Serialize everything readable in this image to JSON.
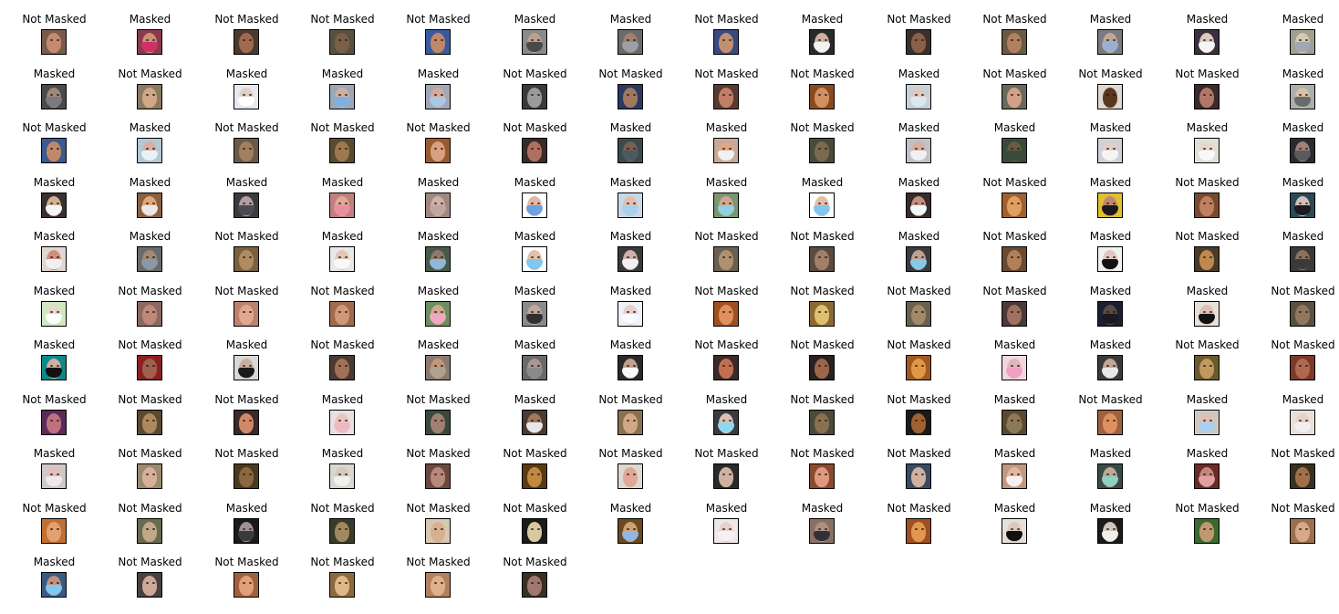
{
  "layout": {
    "columns": 14
  },
  "cells": [
    {
      "label": "Not Masked",
      "masked": false,
      "bg": "#7a5a48",
      "skin": "#c48a70",
      "mask": ""
    },
    {
      "label": "Masked",
      "masked": true,
      "bg": "#8a3a4a",
      "skin": "#c89078",
      "mask": "#d0306a"
    },
    {
      "label": "Not Masked",
      "masked": false,
      "bg": "#4a3a30",
      "skin": "#a06a50",
      "mask": ""
    },
    {
      "label": "Not Masked",
      "masked": false,
      "bg": "#5a5040",
      "skin": "#7a6048",
      "mask": ""
    },
    {
      "label": "Not Masked",
      "masked": false,
      "bg": "#3a5aa0",
      "skin": "#c08868",
      "mask": ""
    },
    {
      "label": "Masked",
      "masked": true,
      "bg": "#8a8a8a",
      "skin": "#bba090",
      "mask": "#4a4a4a"
    },
    {
      "label": "Masked",
      "masked": true,
      "bg": "#6a6a6a",
      "skin": "#a08070",
      "mask": "#9aa0a8"
    },
    {
      "label": "Not Masked",
      "masked": false,
      "bg": "#3a4a80",
      "skin": "#c09070",
      "mask": ""
    },
    {
      "label": "Masked",
      "masked": true,
      "bg": "#2a2a2a",
      "skin": "#d0b0a0",
      "mask": "#f2f2f2"
    },
    {
      "label": "Not Masked",
      "masked": false,
      "bg": "#3a3028",
      "skin": "#8a6048",
      "mask": ""
    },
    {
      "label": "Not Masked",
      "masked": false,
      "bg": "#6a5a40",
      "skin": "#b08060",
      "mask": ""
    },
    {
      "label": "Masked",
      "masked": true,
      "bg": "#7a7a80",
      "skin": "#c0a898",
      "mask": "#9ab0d0"
    },
    {
      "label": "Masked",
      "masked": true,
      "bg": "#3a3040",
      "skin": "#e0c8c0",
      "mask": "#f5f5f5"
    },
    {
      "label": "Masked",
      "masked": true,
      "bg": "#a0a090",
      "skin": "#d8c8b0",
      "mask": "#a0a8b0"
    },
    {
      "label": "Masked",
      "masked": true,
      "bg": "#4a4a4a",
      "skin": "#a08878",
      "mask": "#7a7a80"
    },
    {
      "label": "Not Masked",
      "masked": false,
      "bg": "#8a7a60",
      "skin": "#d0a888",
      "mask": ""
    },
    {
      "label": "Masked",
      "masked": true,
      "bg": "#e8e8f0",
      "skin": "#e0d0c8",
      "mask": "#ffffff"
    },
    {
      "label": "Masked",
      "masked": true,
      "bg": "#9aa8b8",
      "skin": "#d0b0a0",
      "mask": "#80b0e0"
    },
    {
      "label": "Masked",
      "masked": true,
      "bg": "#a0a8b8",
      "skin": "#d8a898",
      "mask": "#a8c8e8"
    },
    {
      "label": "Not Masked",
      "masked": false,
      "bg": "#3a3a3a",
      "skin": "#9a9a9a",
      "mask": ""
    },
    {
      "label": "Not Masked",
      "masked": false,
      "bg": "#2a3a60",
      "skin": "#a07860",
      "mask": ""
    },
    {
      "label": "Not Masked",
      "masked": false,
      "bg": "#5a3a30",
      "skin": "#c08068",
      "mask": ""
    },
    {
      "label": "Not Masked",
      "masked": false,
      "bg": "#8a4a20",
      "skin": "#d09060",
      "mask": ""
    },
    {
      "label": "Masked",
      "masked": true,
      "bg": "#c8d0d8",
      "skin": "#e0c8c0",
      "mask": "#d8e8f0"
    },
    {
      "label": "Not Masked",
      "masked": false,
      "bg": "#6a6a5a",
      "skin": "#d0a088",
      "mask": ""
    },
    {
      "label": "Not Masked",
      "masked": false,
      "bg": "#e0d8d0",
      "skin": "#5a3820",
      "mask": ""
    },
    {
      "label": "Not Masked",
      "masked": false,
      "bg": "#3a2a28",
      "skin": "#b07868",
      "mask": ""
    },
    {
      "label": "Masked",
      "masked": true,
      "bg": "#a8b0a8",
      "skin": "#d8c0a8",
      "mask": "#6a6a6a"
    },
    {
      "label": "Not Masked",
      "masked": false,
      "bg": "#3a5a90",
      "skin": "#c08868",
      "mask": ""
    },
    {
      "label": "Masked",
      "masked": true,
      "bg": "#b0c8d8",
      "skin": "#d8b0a0",
      "mask": "#e8f0f8"
    },
    {
      "label": "Not Masked",
      "masked": false,
      "bg": "#6a5a48",
      "skin": "#a08060",
      "mask": ""
    },
    {
      "label": "Not Masked",
      "masked": false,
      "bg": "#5a4a30",
      "skin": "#a07850",
      "mask": ""
    },
    {
      "label": "Not Masked",
      "masked": false,
      "bg": "#9a5a30",
      "skin": "#d8a080",
      "mask": ""
    },
    {
      "label": "Not Masked",
      "masked": false,
      "bg": "#3a2a28",
      "skin": "#b07060",
      "mask": ""
    },
    {
      "label": "Masked",
      "masked": true,
      "bg": "#3a4a50",
      "skin": "#7a6050",
      "mask": "#4a5a60"
    },
    {
      "label": "Masked",
      "masked": true,
      "bg": "#c8a898",
      "skin": "#e0a888",
      "mask": "#f0f0f0"
    },
    {
      "label": "Not Masked",
      "masked": false,
      "bg": "#4a4a3a",
      "skin": "#7a6a50",
      "mask": ""
    },
    {
      "label": "Masked",
      "masked": true,
      "bg": "#c0c0c8",
      "skin": "#d8b0a0",
      "mask": "#f0f0f5"
    },
    {
      "label": "Masked",
      "masked": true,
      "bg": "#3a4a38",
      "skin": "#6a5a40",
      "mask": "#3a4a3a"
    },
    {
      "label": "Masked",
      "masked": true,
      "bg": "#d0d0d8",
      "skin": "#e0d0c8",
      "mask": "#f5f5f8"
    },
    {
      "label": "Masked",
      "masked": true,
      "bg": "#e0e0d8",
      "skin": "#e8d8c8",
      "mask": "#f8f8f8"
    },
    {
      "label": "Masked",
      "masked": true,
      "bg": "#2a2a30",
      "skin": "#a08078",
      "mask": "#5a5a60"
    },
    {
      "label": "Masked",
      "masked": true,
      "bg": "#3a3030",
      "skin": "#d0b090",
      "mask": "#f5f5f5"
    },
    {
      "label": "Masked",
      "masked": true,
      "bg": "#8a6040",
      "skin": "#e0a878",
      "mask": "#e8e8e8"
    },
    {
      "label": "Masked",
      "masked": true,
      "bg": "#3a3a40",
      "skin": "#b0a0a0",
      "mask": "#4a4a50"
    },
    {
      "label": "Masked",
      "masked": true,
      "bg": "#c08080",
      "skin": "#e0a898",
      "mask": "#e890a0"
    },
    {
      "label": "Masked",
      "masked": true,
      "bg": "#a08880",
      "skin": "#d0b0a8",
      "mask": "#c0a8a0"
    },
    {
      "label": "Masked",
      "masked": true,
      "bg": "#ffffff",
      "skin": "#e0b8a8",
      "mask": "#70a0e0"
    },
    {
      "label": "Masked",
      "masked": true,
      "bg": "#c8d8e8",
      "skin": "#e0c0b0",
      "mask": "#a8d0f0"
    },
    {
      "label": "Masked",
      "masked": true,
      "bg": "#7a9870",
      "skin": "#d0a890",
      "mask": "#90d0e0"
    },
    {
      "label": "Masked",
      "masked": true,
      "bg": "#ffffff",
      "skin": "#e0c0a8",
      "mask": "#80c8f0"
    },
    {
      "label": "Masked",
      "masked": true,
      "bg": "#3a2a28",
      "skin": "#c09080",
      "mask": "#f0f8f8"
    },
    {
      "label": "Not Masked",
      "masked": false,
      "bg": "#a06030",
      "skin": "#e0a060",
      "mask": ""
    },
    {
      "label": "Masked",
      "masked": true,
      "bg": "#e0c030",
      "skin": "#c08870",
      "mask": "#1a1a1a"
    },
    {
      "label": "Not Masked",
      "masked": false,
      "bg": "#7a4a30",
      "skin": "#c08060",
      "mask": ""
    },
    {
      "label": "Masked",
      "masked": true,
      "bg": "#2a4a58",
      "skin": "#d0c0b8",
      "mask": "#1a1a20"
    },
    {
      "label": "Masked",
      "masked": true,
      "bg": "#e0d8d0",
      "skin": "#d09080",
      "mask": "#f0f0f0"
    },
    {
      "label": "Masked",
      "masked": true,
      "bg": "#6a6a6a",
      "skin": "#a08878",
      "mask": "#8898a8"
    },
    {
      "label": "Not Masked",
      "masked": false,
      "bg": "#7a6040",
      "skin": "#b08a60",
      "mask": ""
    },
    {
      "label": "Masked",
      "masked": true,
      "bg": "#e8e8e8",
      "skin": "#e0c8b8",
      "mask": "#f8f8f8"
    },
    {
      "label": "Masked",
      "masked": true,
      "bg": "#4a5a4a",
      "skin": "#907868",
      "mask": "#90b8d8"
    },
    {
      "label": "Masked",
      "masked": true,
      "bg": "#ffffff",
      "skin": "#e0c0a8",
      "mask": "#80c8f0"
    },
    {
      "label": "Masked",
      "masked": true,
      "bg": "#3a3a3a",
      "skin": "#d0b0a8",
      "mask": "#f0f0f5"
    },
    {
      "label": "Not Masked",
      "masked": false,
      "bg": "#6a6050",
      "skin": "#b09070",
      "mask": ""
    },
    {
      "label": "Not Masked",
      "masked": false,
      "bg": "#5a4a40",
      "skin": "#a08068",
      "mask": ""
    },
    {
      "label": "Masked",
      "masked": true,
      "bg": "#3a3a40",
      "skin": "#c0a090",
      "mask": "#88c8e8"
    },
    {
      "label": "Not Masked",
      "masked": false,
      "bg": "#6a4a30",
      "skin": "#b08058",
      "mask": ""
    },
    {
      "label": "Masked",
      "masked": true,
      "bg": "#f0f0f0",
      "skin": "#e0c8c0",
      "mask": "#111111"
    },
    {
      "label": "Not Masked",
      "masked": false,
      "bg": "#4a3a28",
      "skin": "#c08850",
      "mask": ""
    },
    {
      "label": "Masked",
      "masked": true,
      "bg": "#3a3a38",
      "skin": "#8a7060",
      "mask": "#3a3a3a"
    },
    {
      "label": "Masked",
      "masked": true,
      "bg": "#d0e8c0",
      "skin": "#e8d8c8",
      "mask": "#ffffff"
    },
    {
      "label": "Not Masked",
      "masked": false,
      "bg": "#8a6a60",
      "skin": "#c08878",
      "mask": ""
    },
    {
      "label": "Not Masked",
      "masked": false,
      "bg": "#c08070",
      "skin": "#e0a890",
      "mask": ""
    },
    {
      "label": "Not Masked",
      "masked": false,
      "bg": "#a06a50",
      "skin": "#d09878",
      "mask": ""
    },
    {
      "label": "Masked",
      "masked": true,
      "bg": "#6a9060",
      "skin": "#d0a890",
      "mask": "#f0a8c0"
    },
    {
      "label": "Masked",
      "masked": true,
      "bg": "#8a8a8a",
      "skin": "#c0a898",
      "mask": "#303030"
    },
    {
      "label": "Masked",
      "masked": true,
      "bg": "#f0f0f8",
      "skin": "#e8d0c8",
      "mask": "#f8f8ff"
    },
    {
      "label": "Not Masked",
      "masked": false,
      "bg": "#a05020",
      "skin": "#e09060",
      "mask": ""
    },
    {
      "label": "Not Masked",
      "masked": false,
      "bg": "#8a6a30",
      "skin": "#e0c070",
      "mask": ""
    },
    {
      "label": "Not Masked",
      "masked": false,
      "bg": "#6a6050",
      "skin": "#a08868",
      "mask": ""
    },
    {
      "label": "Not Masked",
      "masked": false,
      "bg": "#4a3a38",
      "skin": "#a07060",
      "mask": ""
    },
    {
      "label": "Masked",
      "masked": true,
      "bg": "#1a2030",
      "skin": "#5a4a40",
      "mask": "#1a1a20"
    },
    {
      "label": "Masked",
      "masked": true,
      "bg": "#e8e0d8",
      "skin": "#e0c0b0",
      "mask": "#111111"
    },
    {
      "label": "Not Masked",
      "masked": false,
      "bg": "#5a5040",
      "skin": "#907860",
      "mask": ""
    },
    {
      "label": "Masked",
      "masked": true,
      "bg": "#108888",
      "skin": "#d0b0a0",
      "mask": "#111111"
    },
    {
      "label": "Not Masked",
      "masked": false,
      "bg": "#8a2020",
      "skin": "#a06050",
      "mask": ""
    },
    {
      "label": "Masked",
      "masked": true,
      "bg": "#d8d8d8",
      "skin": "#c8b0a0",
      "mask": "#1a1a1a"
    },
    {
      "label": "Not Masked",
      "masked": false,
      "bg": "#4a3a30",
      "skin": "#a07058",
      "mask": ""
    },
    {
      "label": "Masked",
      "masked": true,
      "bg": "#8a7a70",
      "skin": "#c09878",
      "mask": "#b0a090"
    },
    {
      "label": "Masked",
      "masked": true,
      "bg": "#6a6a6a",
      "skin": "#a89890",
      "mask": "#8a8a8a"
    },
    {
      "label": "Masked",
      "masked": true,
      "bg": "#2a2a2a",
      "skin": "#c0a090",
      "mask": "#f8f8f8"
    },
    {
      "label": "Not Masked",
      "masked": false,
      "bg": "#3a2a28",
      "skin": "#c07050",
      "mask": ""
    },
    {
      "label": "Not Masked",
      "masked": false,
      "bg": "#2a2020",
      "skin": "#9a6848",
      "mask": ""
    },
    {
      "label": "Not Masked",
      "masked": false,
      "bg": "#a05a20",
      "skin": "#e09848",
      "mask": ""
    },
    {
      "label": "Masked",
      "masked": true,
      "bg": "#f0d8e0",
      "skin": "#e0b8b8",
      "mask": "#f0a0c0"
    },
    {
      "label": "Masked",
      "masked": true,
      "bg": "#3a3a3a",
      "skin": "#c0a898",
      "mask": "#e8e8e8"
    },
    {
      "label": "Not Masked",
      "masked": false,
      "bg": "#6a5a30",
      "skin": "#c09860",
      "mask": ""
    },
    {
      "label": "Not Masked",
      "masked": false,
      "bg": "#7a3a28",
      "skin": "#b06850",
      "mask": ""
    },
    {
      "label": "Not Masked",
      "masked": false,
      "bg": "#5a2a5a",
      "skin": "#c07080",
      "mask": ""
    },
    {
      "label": "Not Masked",
      "masked": false,
      "bg": "#5a4a30",
      "skin": "#b08860",
      "mask": ""
    },
    {
      "label": "Not Masked",
      "masked": false,
      "bg": "#3a2a28",
      "skin": "#d08868",
      "mask": ""
    },
    {
      "label": "Masked",
      "masked": true,
      "bg": "#e8e0e0",
      "skin": "#e8c8c0",
      "mask": "#f0b8c0"
    },
    {
      "label": "Not Masked",
      "masked": false,
      "bg": "#3a4a3a",
      "skin": "#a08070",
      "mask": ""
    },
    {
      "label": "Masked",
      "masked": true,
      "bg": "#4a3a30",
      "skin": "#a07860",
      "mask": "#e8e8e8"
    },
    {
      "label": "Not Masked",
      "masked": false,
      "bg": "#8a7050",
      "skin": "#d0a888",
      "mask": ""
    },
    {
      "label": "Masked",
      "masked": true,
      "bg": "#3a3a40",
      "skin": "#e0c0b0",
      "mask": "#90d8f0"
    },
    {
      "label": "Not Masked",
      "masked": false,
      "bg": "#4a4a3a",
      "skin": "#8a7050",
      "mask": ""
    },
    {
      "label": "Not Masked",
      "masked": false,
      "bg": "#1a1a18",
      "skin": "#a06030",
      "mask": ""
    },
    {
      "label": "Masked",
      "masked": true,
      "bg": "#5a4a30",
      "skin": "#907858",
      "mask": "#8a7a58"
    },
    {
      "label": "Not Masked",
      "masked": false,
      "bg": "#a06040",
      "skin": "#e09060",
      "mask": ""
    },
    {
      "label": "Masked",
      "masked": true,
      "bg": "#d0c8c0",
      "skin": "#e0c0b0",
      "mask": "#a8d0f0"
    },
    {
      "label": "Masked",
      "masked": true,
      "bg": "#e8e0d8",
      "skin": "#e8d0c8",
      "mask": "#f0f0f0"
    },
    {
      "label": "Masked",
      "masked": true,
      "bg": "#d0c8c8",
      "skin": "#e0c0b8",
      "mask": "#f0e8f0"
    },
    {
      "label": "Not Masked",
      "masked": false,
      "bg": "#9a8a70",
      "skin": "#d8b098",
      "mask": ""
    },
    {
      "label": "Not Masked",
      "masked": false,
      "bg": "#4a3a20",
      "skin": "#8a6840",
      "mask": ""
    },
    {
      "label": "Masked",
      "masked": true,
      "bg": "#d8d8d0",
      "skin": "#d8c8b8",
      "mask": "#f0f0f0"
    },
    {
      "label": "Not Masked",
      "masked": false,
      "bg": "#6a4a40",
      "skin": "#b88878",
      "mask": ""
    },
    {
      "label": "Not Masked",
      "masked": false,
      "bg": "#5a3a10",
      "skin": "#c08840",
      "mask": ""
    },
    {
      "label": "Not Masked",
      "masked": false,
      "bg": "#e0d8d0",
      "skin": "#e0a898",
      "mask": ""
    },
    {
      "label": "Not Masked",
      "masked": false,
      "bg": "#2a2a28",
      "skin": "#d0b0a0",
      "mask": ""
    },
    {
      "label": "Not Masked",
      "masked": false,
      "bg": "#8a4a30",
      "skin": "#e09880",
      "mask": ""
    },
    {
      "label": "Not Masked",
      "masked": false,
      "bg": "#3a4a60",
      "skin": "#d0b0a0",
      "mask": ""
    },
    {
      "label": "Masked",
      "masked": true,
      "bg": "#c09880",
      "skin": "#e0b8a0",
      "mask": "#f8f0f0"
    },
    {
      "label": "Masked",
      "masked": true,
      "bg": "#3a4a48",
      "skin": "#c0a898",
      "mask": "#90d0c0"
    },
    {
      "label": "Masked",
      "masked": true,
      "bg": "#6a2a28",
      "skin": "#c08878",
      "mask": "#e0a0a0"
    },
    {
      "label": "Not Masked",
      "masked": false,
      "bg": "#3a3020",
      "skin": "#a07048",
      "mask": ""
    },
    {
      "label": "Not Masked",
      "masked": false,
      "bg": "#c07030",
      "skin": "#e0a070",
      "mask": ""
    },
    {
      "label": "Not Masked",
      "masked": false,
      "bg": "#6a6a50",
      "skin": "#c0a888",
      "mask": ""
    },
    {
      "label": "Masked",
      "masked": true,
      "bg": "#1a1a1a",
      "skin": "#a09090",
      "mask": "#3a3a3a"
    },
    {
      "label": "Not Masked",
      "masked": false,
      "bg": "#3a3a28",
      "skin": "#a08860",
      "mask": ""
    },
    {
      "label": "Not Masked",
      "masked": false,
      "bg": "#d8c8b0",
      "skin": "#d8b090",
      "mask": ""
    },
    {
      "label": "Not Masked",
      "masked": false,
      "bg": "#1a1a18",
      "skin": "#d8c8a0",
      "mask": ""
    },
    {
      "label": "Masked",
      "masked": true,
      "bg": "#6a4a20",
      "skin": "#d0a070",
      "mask": "#90b8e0"
    },
    {
      "label": "Masked",
      "masked": true,
      "bg": "#f0e8e8",
      "skin": "#e8d0c8",
      "mask": "#f8f0f0"
    },
    {
      "label": "Masked",
      "masked": true,
      "bg": "#8a7060",
      "skin": "#b09080",
      "mask": "#303038"
    },
    {
      "label": "Not Masked",
      "masked": false,
      "bg": "#a05020",
      "skin": "#e09850",
      "mask": ""
    },
    {
      "label": "Masked",
      "masked": true,
      "bg": "#e8e0d8",
      "skin": "#e0c8b8",
      "mask": "#111111"
    },
    {
      "label": "Masked",
      "masked": true,
      "bg": "#1a1a18",
      "skin": "#d0c8b8",
      "mask": "#f0f0e8"
    },
    {
      "label": "Not Masked",
      "masked": false,
      "bg": "#3a6a30",
      "skin": "#c09870",
      "mask": ""
    },
    {
      "label": "Not Masked",
      "masked": false,
      "bg": "#9a7050",
      "skin": "#d8a888",
      "mask": ""
    },
    {
      "label": "Masked",
      "masked": true,
      "bg": "#3a5a80",
      "skin": "#c09080",
      "mask": "#80c8f0"
    },
    {
      "label": "Not Masked",
      "masked": false,
      "bg": "#4a4040",
      "skin": "#d0a898",
      "mask": ""
    },
    {
      "label": "Not Masked",
      "masked": false,
      "bg": "#a06040",
      "skin": "#e0a078",
      "mask": ""
    },
    {
      "label": "Not Masked",
      "masked": false,
      "bg": "#8a6a40",
      "skin": "#e0b888",
      "mask": ""
    },
    {
      "label": "Not Masked",
      "masked": false,
      "bg": "#b08060",
      "skin": "#e0b088",
      "mask": ""
    },
    {
      "label": "Not Masked",
      "masked": false,
      "bg": "#3a3020",
      "skin": "#a07870",
      "mask": ""
    }
  ]
}
